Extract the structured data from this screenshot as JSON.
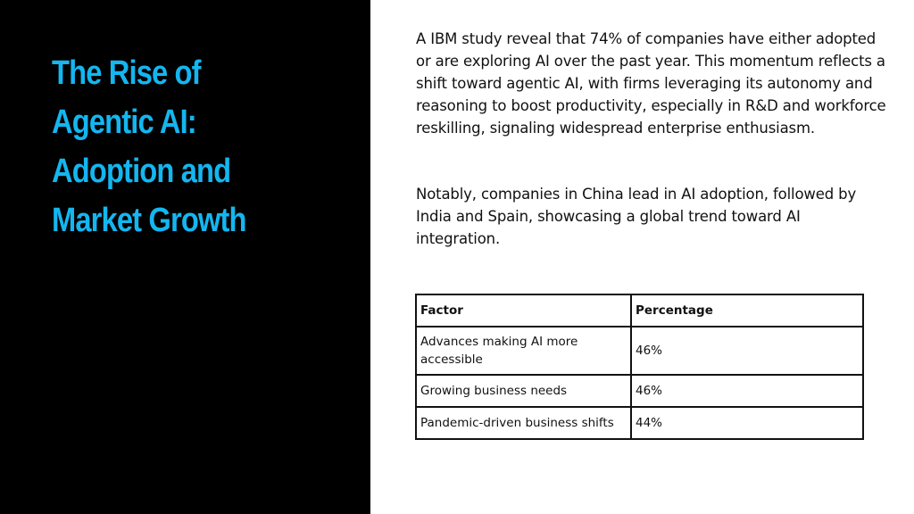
{
  "title": {
    "lines": [
      "The Rise of",
      "Agentic AI:",
      "Adoption and",
      "Market Growth"
    ]
  },
  "paragraphs": [
    "A IBM study reveal that 74% of companies have either adopted or are exploring AI over the past year. This momentum reflects a shift toward agentic AI, with firms leveraging its autonomy and reasoning to boost productivity, especially in R&D and workforce reskilling, signaling widespread enterprise enthusiasm.",
    "Notably, companies in China lead in AI adoption, followed by India and Spain, showcasing a global trend toward AI integration."
  ],
  "table": {
    "headers": [
      "Factor",
      "Percentage"
    ],
    "rows": [
      {
        "factor": "Advances making AI more accessible",
        "percentage": "46%"
      },
      {
        "factor": "Growing business needs",
        "percentage": "46%"
      },
      {
        "factor": "Pandemic-driven business shifts",
        "percentage": "44%"
      }
    ]
  },
  "colors": {
    "title": "#14b6f0",
    "left_panel": "#000000",
    "background": "#ffffff",
    "text": "#111111"
  }
}
